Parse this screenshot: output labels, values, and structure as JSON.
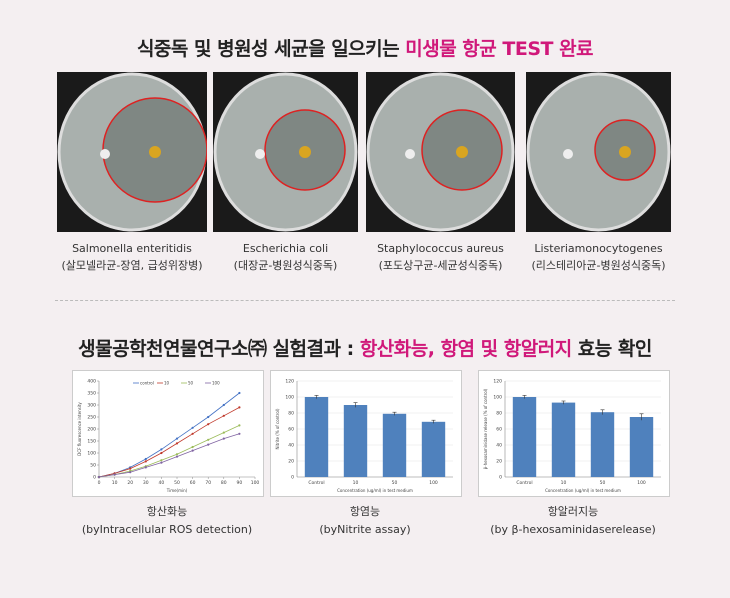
{
  "section1": {
    "title_plain": "식중독 및 병원성 세균을 일으키는",
    "title_highlight": "미생물 항균 TEST 완료"
  },
  "samples": [
    {
      "name": "Salmonella enteritidis",
      "korean": "(살모넬라균-장염, 급성위장병)"
    },
    {
      "name": "Escherichia coli",
      "korean": "(대장균-병원성식중독)"
    },
    {
      "name": "Staphylococcus aureus",
      "korean": "(포도상구균-세균성식중독)"
    },
    {
      "name": "Listeriamonocytogenes",
      "korean": "(리스테리아균-병원성식중독)"
    }
  ],
  "section2": {
    "title_start": "생물공학천연물연구소㈜ 실험결과 :",
    "title_highlight": "항산화능, 항염 및 항알러지",
    "title_end": "효능 확인"
  },
  "chart_data": [
    {
      "type": "line",
      "caption": "항산화능",
      "caption_sub": "(byIntracellular ROS detection)",
      "xlabel": "Time(min)",
      "ylabel": "DCF fluorescence intensity",
      "x": [
        0,
        10,
        20,
        30,
        40,
        50,
        60,
        70,
        80,
        90
      ],
      "xlim": [
        0,
        100
      ],
      "xticks": [
        0,
        10,
        20,
        30,
        40,
        50,
        60,
        70,
        80,
        90,
        100
      ],
      "ylim": [
        0,
        400
      ],
      "yticks": [
        0,
        50,
        100,
        150,
        200,
        250,
        300,
        350,
        400
      ],
      "grid": false,
      "series": [
        {
          "name": "control",
          "color": "#4472c4",
          "values": [
            0,
            15,
            40,
            75,
            115,
            160,
            205,
            250,
            300,
            350
          ]
        },
        {
          "name": "10",
          "color": "#c0392b",
          "values": [
            0,
            15,
            35,
            65,
            100,
            140,
            180,
            220,
            255,
            290
          ]
        },
        {
          "name": "50",
          "color": "#9bbb59",
          "values": [
            0,
            10,
            25,
            45,
            70,
            95,
            125,
            155,
            185,
            215
          ]
        },
        {
          "name": "100",
          "color": "#8064a2",
          "values": [
            0,
            10,
            20,
            40,
            60,
            85,
            110,
            135,
            160,
            180
          ]
        }
      ]
    },
    {
      "type": "bar",
      "caption": "항염능",
      "caption_sub": "(byNitrite assay)",
      "xlabel": "Concentration (ug/ml) in test medium",
      "ylabel": "Nitrite (% of control)",
      "categories": [
        "Control",
        "10",
        "50",
        "100"
      ],
      "values": [
        100,
        90,
        79,
        69
      ],
      "errors": [
        2,
        3,
        2,
        2
      ],
      "color": "#4f81bd",
      "ylim": [
        0,
        120
      ],
      "yticks": [
        0,
        20,
        40,
        60,
        80,
        100,
        120
      ],
      "grid": true
    },
    {
      "type": "bar",
      "caption": "항알러지능",
      "caption_sub": "(by β-hexosaminidaserelease)",
      "xlabel": "Concentration (ug/ml) in test medium",
      "ylabel": "β-hexosaminidase release (% of control)",
      "categories": [
        "Control",
        "10",
        "50",
        "100"
      ],
      "values": [
        100,
        93,
        81,
        75
      ],
      "errors": [
        2,
        2,
        3,
        4
      ],
      "color": "#4f81bd",
      "ylim": [
        0,
        120
      ],
      "yticks": [
        0,
        20,
        40,
        60,
        80,
        100,
        120
      ],
      "grid": true
    }
  ]
}
